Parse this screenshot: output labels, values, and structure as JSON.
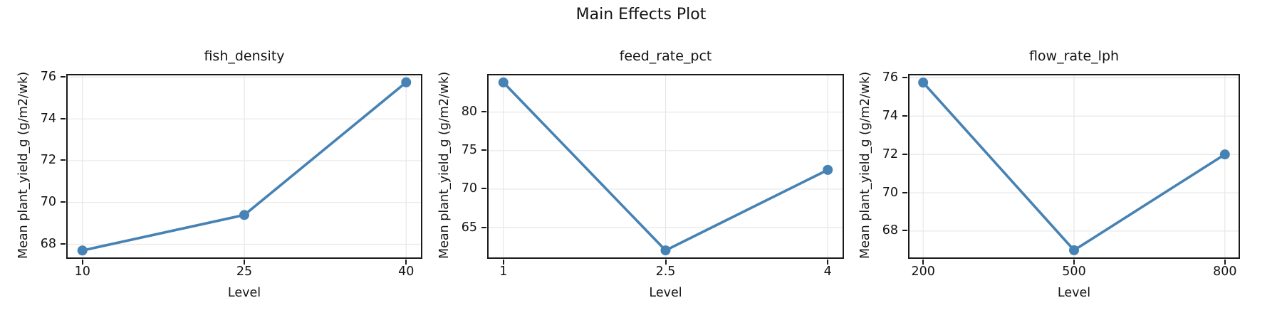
{
  "figure": {
    "title": "Main Effects Plot"
  },
  "style": {
    "line_color": "#4682B4",
    "marker_color": "#4682B4",
    "grid_color": "#e7e7e7",
    "spine_color": "#1a1a1a",
    "text_color": "#141414",
    "background": "#ffffff"
  },
  "chart_data": [
    {
      "type": "line",
      "title": "fish_density",
      "xlabel": "Level",
      "ylabel": "Mean plant_yield_g (g/m2/wk)",
      "x": [
        10,
        25,
        40
      ],
      "x_tick_labels": [
        "10",
        "25",
        "40"
      ],
      "y": [
        67.7,
        69.4,
        75.75
      ],
      "yticks": [
        68,
        70,
        72,
        74,
        76
      ],
      "xlim": [
        8.5,
        41.5
      ],
      "ylim": [
        67.3,
        76.15
      ],
      "grid": true,
      "legend": false
    },
    {
      "type": "line",
      "title": "feed_rate_pct",
      "xlabel": "Level",
      "ylabel": "Mean plant_yield_g (g/m2/wk)",
      "x": [
        1,
        2.5,
        4
      ],
      "x_tick_labels": [
        "1",
        "2.5",
        "4"
      ],
      "y": [
        83.85,
        62.05,
        72.5
      ],
      "yticks": [
        65,
        70,
        75,
        80
      ],
      "xlim": [
        0.85,
        4.15
      ],
      "ylim": [
        60.95,
        84.95
      ],
      "grid": true,
      "legend": false
    },
    {
      "type": "line",
      "title": "flow_rate_lph",
      "xlabel": "Level",
      "ylabel": "Mean plant_yield_g (g/m2/wk)",
      "x": [
        200,
        500,
        800
      ],
      "x_tick_labels": [
        "200",
        "500",
        "800"
      ],
      "y": [
        75.75,
        67.0,
        72.0
      ],
      "yticks": [
        68,
        70,
        72,
        74,
        76
      ],
      "xlim": [
        170,
        830
      ],
      "ylim": [
        66.55,
        76.2
      ],
      "grid": true,
      "legend": false
    }
  ]
}
